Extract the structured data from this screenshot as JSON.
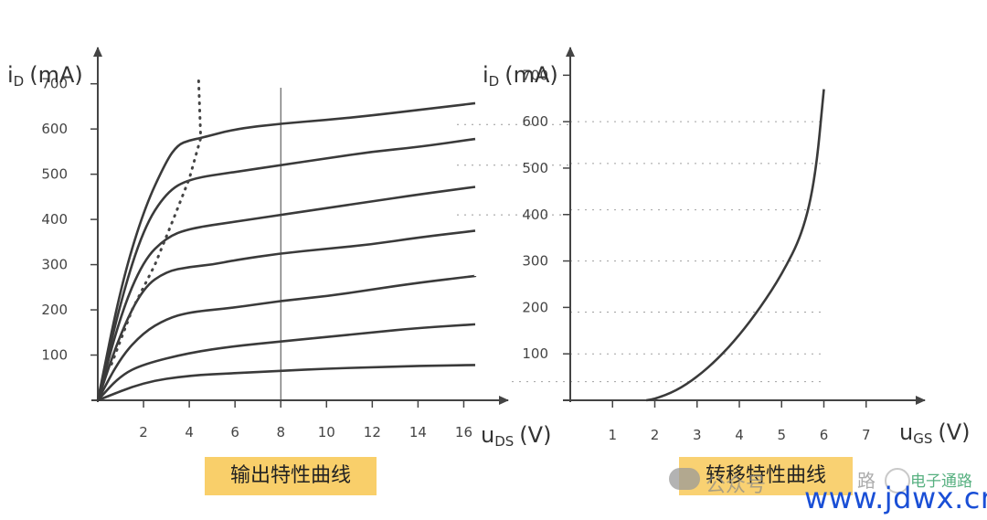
{
  "chart_data": [
    {
      "type": "line",
      "title": "输出特性曲线",
      "xlabel": "u",
      "xlabel_sub": "DS",
      "xlabel_unit": "(V)",
      "ylabel": "i",
      "ylabel_sub": "D",
      "ylabel_unit": "(mA)",
      "xlim": [
        0,
        17.5
      ],
      "ylim": [
        0,
        760
      ],
      "xticks": [
        2,
        4,
        6,
        8,
        10,
        12,
        14,
        16
      ],
      "yticks": [
        100,
        200,
        300,
        400,
        500,
        600,
        700
      ],
      "grid": false,
      "series": [
        {
          "x": [
            0,
            2,
            4,
            6,
            8,
            10,
            12,
            14,
            16.5
          ],
          "y": [
            0,
            40,
            55,
            60,
            65,
            70,
            73,
            76,
            78
          ]
        },
        {
          "x": [
            0,
            1,
            2,
            4,
            6,
            8,
            10,
            12,
            14,
            16.5
          ],
          "y": [
            0,
            55,
            80,
            105,
            120,
            130,
            140,
            150,
            160,
            168
          ]
        },
        {
          "x": [
            0,
            1,
            2,
            3,
            4,
            6,
            8,
            10,
            12,
            14,
            16.5
          ],
          "y": [
            0,
            95,
            150,
            180,
            195,
            205,
            220,
            230,
            245,
            260,
            275
          ]
        },
        {
          "x": [
            0,
            1,
            2,
            3,
            4,
            5,
            6,
            8,
            10,
            12,
            14,
            16.5
          ],
          "y": [
            0,
            150,
            250,
            285,
            295,
            300,
            310,
            325,
            335,
            345,
            360,
            375
          ]
        },
        {
          "x": [
            0,
            1,
            2,
            3,
            4,
            6,
            8,
            10,
            12,
            14,
            16.5
          ],
          "y": [
            0,
            190,
            310,
            360,
            380,
            395,
            410,
            425,
            440,
            455,
            472
          ]
        },
        {
          "x": [
            0,
            1,
            2,
            3,
            4,
            6,
            8,
            10,
            12,
            14,
            16.5
          ],
          "y": [
            0,
            220,
            380,
            460,
            490,
            505,
            520,
            535,
            550,
            560,
            578
          ]
        },
        {
          "x": [
            0,
            1,
            2,
            3,
            3.5,
            4,
            4.5,
            6,
            8,
            10,
            12,
            14,
            16.5
          ],
          "y": [
            0,
            250,
            420,
            530,
            565,
            575,
            580,
            600,
            612,
            620,
            630,
            642,
            657
          ]
        }
      ],
      "boundary": {
        "x": [
          0.6,
          1.5,
          2.5,
          3.3,
          4.0,
          4.5,
          4.4
        ],
        "y": [
          80,
          200,
          300,
          400,
          490,
          580,
          720
        ]
      },
      "vline_x": 8,
      "label": "输出特性曲线"
    },
    {
      "type": "line",
      "title": "转移特性曲线",
      "xlabel": "u",
      "xlabel_sub": "GS",
      "xlabel_unit": "(V)",
      "ylabel": "i",
      "ylabel_sub": "D",
      "ylabel_unit": "(mA)",
      "xlim": [
        0,
        8
      ],
      "ylim": [
        0,
        740
      ],
      "xticks": [
        1,
        2,
        3,
        4,
        5,
        6,
        7
      ],
      "yticks": [
        100,
        200,
        300,
        400,
        500,
        600,
        700
      ],
      "grid": false,
      "series": [
        {
          "x": [
            1.8,
            2,
            2.5,
            3,
            3.5,
            4,
            4.5,
            5,
            5.5,
            5.8,
            6
          ],
          "y": [
            0,
            3,
            20,
            50,
            90,
            140,
            200,
            270,
            360,
            480,
            670
          ]
        }
      ],
      "hlines": [
        600,
        510,
        410,
        300,
        190,
        100,
        40
      ],
      "label": "转移特性曲线"
    }
  ],
  "watermark": {
    "text_left": "公众号",
    "text_mid": "路",
    "logo": "电子通路",
    "site": "www.jdwx.cn"
  }
}
